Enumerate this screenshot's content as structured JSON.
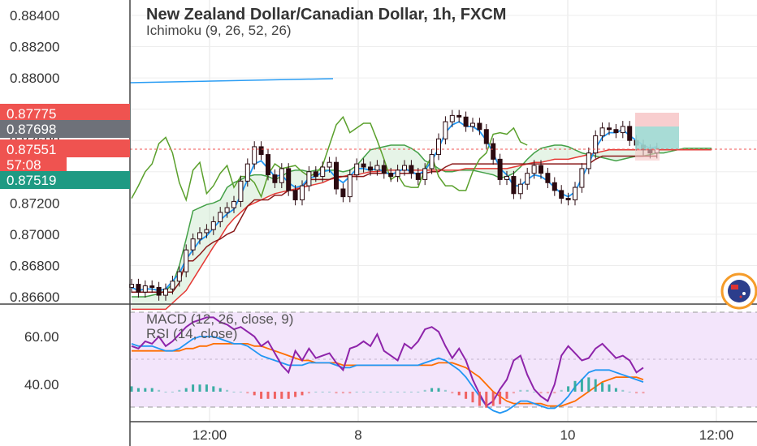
{
  "header": {
    "symbol_title": "New Zealand Dollar/Canadian Dollar, 1h, FXCM",
    "indicator_ichimoku": "Ichimoku (9, 26, 52, 26)"
  },
  "lower_panel": {
    "macd_label": "MACD (12, 26, close, 9)",
    "rsi_label": "RSI (14, close)"
  },
  "price_tags": {
    "red": "0.87775",
    "gray": "0.87698",
    "current": "0.87551",
    "countdown": "57:08",
    "teal": "0.87519"
  },
  "colors": {
    "red_tag": "#ef5350",
    "gray_tag": "#6e7179",
    "current_tag": "#f05c50",
    "teal_tag": "#1e9a83",
    "candle": "#2b0a10",
    "conversion_line": "#2196f3",
    "base_line": "#8b1a1a",
    "lagging_span": "#5aa02c",
    "leading_span_a": "#43a047",
    "leading_span_b": "#e53935",
    "rsi": "#8e24aa",
    "macd": "#2196f3",
    "signal": "#ff6d00"
  },
  "chart_data": [
    {
      "type": "line",
      "title": "New Zealand Dollar/Canadian Dollar, 1h, FXCM",
      "y_tick_labels": [
        "0.88400",
        "0.88200",
        "0.88000",
        "0.87800",
        "0.87600",
        "0.87400",
        "0.87200",
        "0.87000",
        "0.86800",
        "0.86600"
      ],
      "x_tick_labels": [
        "12:00",
        "8",
        "10",
        "12:00"
      ],
      "ylim": [
        0.8657,
        0.8846
      ],
      "closes": [
        0.8668,
        0.8663,
        0.8667,
        0.8666,
        0.8661,
        0.8665,
        0.867,
        0.8676,
        0.869,
        0.8697,
        0.8701,
        0.8703,
        0.8708,
        0.8714,
        0.8717,
        0.8721,
        0.8734,
        0.8745,
        0.8756,
        0.8751,
        0.8738,
        0.8733,
        0.8742,
        0.8728,
        0.8722,
        0.8731,
        0.874,
        0.8737,
        0.8743,
        0.8746,
        0.8729,
        0.8724,
        0.8738,
        0.8745,
        0.8743,
        0.8741,
        0.8744,
        0.8739,
        0.8737,
        0.8741,
        0.8744,
        0.8739,
        0.8735,
        0.8742,
        0.8751,
        0.8761,
        0.8772,
        0.8776,
        0.8775,
        0.8769,
        0.8771,
        0.8767,
        0.8758,
        0.8748,
        0.8735,
        0.8737,
        0.8726,
        0.8732,
        0.8739,
        0.8744,
        0.8739,
        0.8733,
        0.8728,
        0.8723,
        0.8722,
        0.873,
        0.8742,
        0.8752,
        0.8763,
        0.8768,
        0.8767,
        0.8765,
        0.8769,
        0.876,
        0.8757,
        0.8754,
        0.8752,
        0.8755
      ],
      "conversion_line": [
        0.8666,
        0.8664,
        0.8665,
        0.8665,
        0.8664,
        0.8665,
        0.867,
        0.8675,
        0.8684,
        0.869,
        0.8696,
        0.8699,
        0.8704,
        0.8709,
        0.8713,
        0.8716,
        0.8725,
        0.8735,
        0.8745,
        0.8747,
        0.8742,
        0.8737,
        0.8738,
        0.8733,
        0.873,
        0.8731,
        0.8736,
        0.8737,
        0.874,
        0.8741,
        0.8736,
        0.8733,
        0.8737,
        0.8742,
        0.8742,
        0.8741,
        0.8742,
        0.874,
        0.8738,
        0.874,
        0.8742,
        0.874,
        0.8738,
        0.8741,
        0.8747,
        0.8755,
        0.8765,
        0.877,
        0.8772,
        0.8769,
        0.8769,
        0.8766,
        0.876,
        0.8752,
        0.8742,
        0.8738,
        0.8731,
        0.8731,
        0.8735,
        0.8738,
        0.8737,
        0.8734,
        0.873,
        0.8726,
        0.8724,
        0.8727,
        0.8736,
        0.8745,
        0.8755,
        0.8762,
        0.8765,
        0.8765,
        0.8767,
        0.8763,
        0.876,
        0.8757,
        0.8755,
        0.8756
      ],
      "base_line": [
        0.8663,
        0.8663,
        0.8663,
        0.8663,
        0.8663,
        0.8663,
        0.8663,
        0.8669,
        0.8683,
        0.8683,
        0.8687,
        0.8692,
        0.8695,
        0.8697,
        0.87,
        0.8702,
        0.871,
        0.8718,
        0.8722,
        0.8722,
        0.8722,
        0.8725,
        0.8725,
        0.8728,
        0.8728,
        0.873,
        0.8735,
        0.8735,
        0.8735,
        0.8735,
        0.8737,
        0.8737,
        0.8737,
        0.8737,
        0.8737,
        0.8739,
        0.8739,
        0.8739,
        0.8739,
        0.8739,
        0.8739,
        0.8739,
        0.8739,
        0.8739,
        0.874,
        0.874,
        0.8743,
        0.8745,
        0.8745,
        0.8745,
        0.8745,
        0.8745,
        0.8745,
        0.8745,
        0.8745,
        0.8745,
        0.8745,
        0.8745,
        0.8745,
        0.8745,
        0.8745,
        0.8745,
        0.8745,
        0.8745,
        0.8745,
        0.8745,
        0.8745,
        0.8745,
        0.8748,
        0.875,
        0.875,
        0.875,
        0.875,
        0.875,
        0.875,
        0.875,
        0.875,
        0.875
      ],
      "lagging_span": [
        0.8723,
        0.8731,
        0.874,
        0.8745,
        0.8758,
        0.8762,
        0.8752,
        0.8733,
        0.8722,
        0.8741,
        0.8746,
        0.8726,
        0.8731,
        0.8739,
        0.8744,
        0.873,
        0.8737,
        0.8737,
        0.8733,
        0.8724,
        0.8738,
        0.8745,
        0.8742,
        0.8743,
        0.8744,
        0.874,
        0.8737,
        0.8739,
        0.8744,
        0.8757,
        0.877,
        0.8775,
        0.8765,
        0.8768,
        0.8771,
        0.8771,
        0.876,
        0.8748,
        0.8735,
        0.8738,
        0.8731,
        0.873,
        0.873,
        0.8742,
        0.875,
        0.8737,
        0.8731,
        0.8731,
        0.8728,
        0.8728,
        0.874,
        0.8748,
        0.8752,
        0.8764,
        0.8765,
        0.8764,
        0.8768,
        0.8759,
        0.8757
      ],
      "leading_span_a": [
        0.866,
        0.866,
        0.866,
        0.8661,
        0.8662,
        0.8664,
        0.8668,
        0.868,
        0.8697,
        0.8715,
        0.8717,
        0.8719,
        0.872,
        0.8722,
        0.873,
        0.8733,
        0.8735,
        0.8737,
        0.8738,
        0.8738,
        0.8737,
        0.8735,
        0.8737,
        0.874,
        0.8741,
        0.8741,
        0.874,
        0.8741,
        0.8741,
        0.8741,
        0.8741,
        0.874,
        0.8741,
        0.8744,
        0.8749,
        0.8754,
        0.8755,
        0.8756,
        0.8757,
        0.8757,
        0.8757,
        0.8755,
        0.8752,
        0.8747,
        0.8745,
        0.8742,
        0.874,
        0.874,
        0.8741,
        0.8741,
        0.8741,
        0.874,
        0.8739,
        0.8738,
        0.8736,
        0.8737,
        0.8739,
        0.8743,
        0.8748,
        0.8752,
        0.8755,
        0.8756,
        0.8757,
        0.8757,
        0.8756,
        0.8754,
        0.8752,
        0.8751,
        0.875,
        0.8749,
        0.8748,
        0.8747,
        0.8748,
        0.8749,
        0.875,
        0.875,
        0.8751,
        0.8752,
        0.8752,
        0.8753,
        0.8754,
        0.8755,
        0.8755,
        0.8755,
        0.8755,
        0.8755
      ],
      "leading_span_b": [
        0.8652,
        0.8652,
        0.8652,
        0.8652,
        0.8652,
        0.8652,
        0.8656,
        0.866,
        0.8664,
        0.8671,
        0.8678,
        0.8685,
        0.8692,
        0.8698,
        0.8705,
        0.871,
        0.8714,
        0.8718,
        0.872,
        0.8722,
        0.8724,
        0.8726,
        0.8727,
        0.8728,
        0.8729,
        0.873,
        0.8731,
        0.8732,
        0.8733,
        0.8735,
        0.8736,
        0.8737,
        0.8738,
        0.8738,
        0.8739,
        0.874,
        0.874,
        0.8741,
        0.8741,
        0.8741,
        0.8741,
        0.8741,
        0.8741,
        0.8741,
        0.8741,
        0.8741,
        0.8741,
        0.8741,
        0.8741,
        0.8742,
        0.8742,
        0.8742,
        0.8742,
        0.8742,
        0.8742,
        0.8742,
        0.8743,
        0.8744,
        0.8745,
        0.8746,
        0.8746,
        0.8747,
        0.8748,
        0.8748,
        0.8748,
        0.8749,
        0.875,
        0.8751,
        0.8752,
        0.8753,
        0.8754,
        0.8754,
        0.8754,
        0.8754,
        0.8754,
        0.8754,
        0.8754,
        0.8754,
        0.8754,
        0.8754,
        0.8754,
        0.8754,
        0.8754,
        0.8754,
        0.8754,
        0.8754
      ]
    },
    {
      "type": "line",
      "title": "RSI (14, close)",
      "y_tick_labels": [
        "60.00",
        "40.00"
      ],
      "ylim": [
        24,
        72
      ],
      "rsi": [
        56,
        55,
        58,
        57,
        60,
        56,
        58,
        61,
        64,
        66,
        67,
        68,
        68,
        66,
        65,
        63,
        64,
        62,
        60,
        56,
        58,
        53,
        48,
        45,
        54,
        50,
        55,
        51,
        52,
        53,
        49,
        46,
        55,
        56,
        58,
        56,
        61,
        54,
        52,
        50,
        57,
        55,
        58,
        63,
        64,
        62,
        56,
        51,
        55,
        50,
        42,
        36,
        31,
        33,
        38,
        42,
        50,
        52,
        44,
        38,
        35,
        33,
        40,
        52,
        56,
        53,
        50,
        51,
        55,
        57,
        54,
        51,
        52,
        50,
        45,
        47
      ],
      "macd": [
        57,
        56,
        56,
        56,
        55,
        54,
        54,
        55,
        57,
        59,
        60,
        60,
        60,
        59,
        58,
        57,
        57,
        56,
        54,
        52,
        51,
        50,
        49,
        48,
        48,
        48,
        49,
        49,
        49,
        49,
        48,
        47,
        47,
        48,
        48,
        48,
        48,
        48,
        48,
        48,
        48,
        48,
        48,
        49,
        50,
        51,
        50,
        48,
        46,
        43,
        39,
        35,
        31,
        29,
        28,
        29,
        31,
        33,
        33,
        32,
        31,
        30,
        30,
        32,
        35,
        39,
        42,
        45,
        46,
        46,
        46,
        45,
        44,
        43,
        42,
        41
      ],
      "signal": [
        54,
        54,
        54,
        54,
        54,
        54,
        54,
        54,
        55,
        55,
        56,
        56,
        57,
        57,
        57,
        57,
        57,
        57,
        56,
        56,
        55,
        54,
        53,
        52,
        51,
        50,
        50,
        49,
        49,
        49,
        49,
        48,
        48,
        48,
        48,
        48,
        48,
        48,
        48,
        48,
        48,
        48,
        48,
        48,
        48,
        49,
        49,
        49,
        48,
        47,
        45,
        43,
        40,
        37,
        35,
        33,
        32,
        32,
        32,
        32,
        32,
        31,
        31,
        31,
        32,
        33,
        35,
        37,
        39,
        41,
        42,
        43,
        43,
        43,
        43,
        42
      ]
    }
  ]
}
